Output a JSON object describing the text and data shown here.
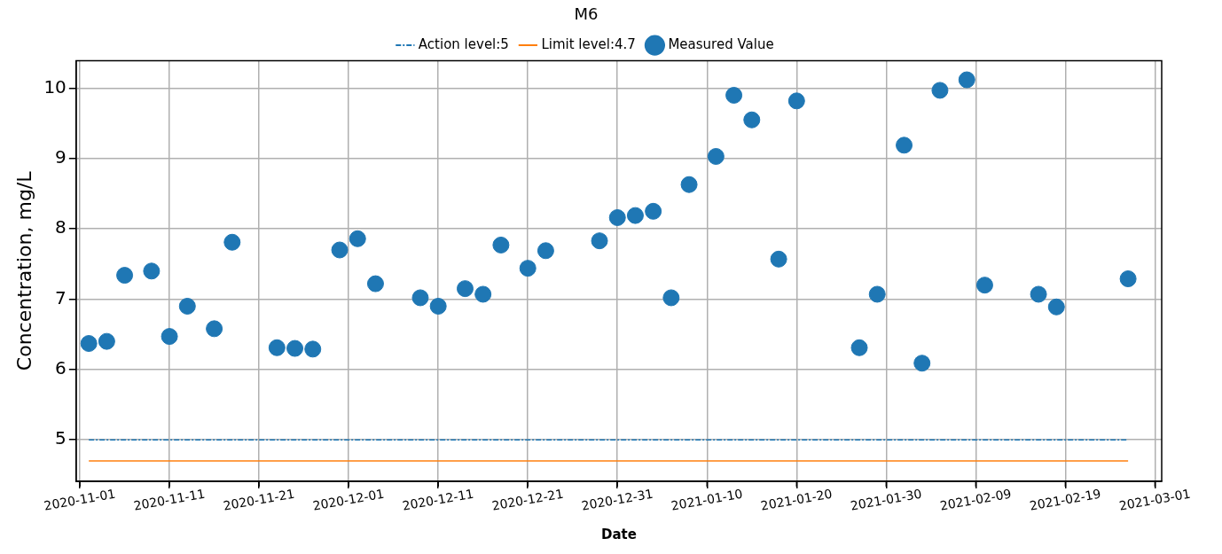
{
  "chart_data": {
    "type": "scatter",
    "legend_title": "M6",
    "xlabel": "Date",
    "ylabel": "Concentration, mg/L",
    "xlim": [
      "2020-10-31T14:00",
      "2021-03-01T18:00"
    ],
    "xticks": [
      "2020-11-01",
      "2020-11-11",
      "2020-11-21",
      "2020-12-01",
      "2020-12-11",
      "2020-12-21",
      "2020-12-31",
      "2021-01-10",
      "2021-01-20",
      "2021-01-30",
      "2021-02-09",
      "2021-02-19",
      "2021-03-01"
    ],
    "ylim": [
      4.41,
      10.39
    ],
    "yticks": [
      5,
      6,
      7,
      8,
      9,
      10
    ],
    "grid": true,
    "legend": "top",
    "series": [
      {
        "name": "Action level:5",
        "type": "line",
        "color": "#1f77b4",
        "line_style": "dashed",
        "marker": "none",
        "x": [
          "2020-11-02",
          "2021-02-26"
        ],
        "values": [
          5,
          5
        ]
      },
      {
        "name": "Limit level:4.7",
        "type": "line",
        "color": "#ff7f0e",
        "line_style": "solid",
        "marker": "none",
        "x": [
          "2020-11-02",
          "2021-02-26"
        ],
        "values": [
          4.7,
          4.7
        ]
      },
      {
        "name": "Measured Value",
        "color": "#1f77b4",
        "marker": "circle",
        "x": [
          "2020-11-02",
          "2020-11-04",
          "2020-11-06",
          "2020-11-09",
          "2020-11-11",
          "2020-11-13",
          "2020-11-16",
          "2020-11-18",
          "2020-11-23",
          "2020-11-25",
          "2020-11-27",
          "2020-11-30",
          "2020-12-02",
          "2020-12-04",
          "2020-12-09",
          "2020-12-11",
          "2020-12-14",
          "2020-12-16",
          "2020-12-18",
          "2020-12-21",
          "2020-12-23",
          "2020-12-29",
          "2020-12-31",
          "2021-01-02",
          "2021-01-04",
          "2021-01-06",
          "2021-01-08",
          "2021-01-11",
          "2021-01-13",
          "2021-01-15",
          "2021-01-18",
          "2021-01-20",
          "2021-01-27",
          "2021-01-29",
          "2021-02-01",
          "2021-02-03",
          "2021-02-05",
          "2021-02-08",
          "2021-02-10",
          "2021-02-16",
          "2021-02-18",
          "2021-02-26"
        ],
        "values": [
          6.37,
          6.4,
          7.34,
          7.4,
          6.47,
          6.9,
          6.58,
          7.81,
          6.31,
          6.3,
          6.29,
          7.7,
          7.86,
          7.22,
          7.02,
          6.9,
          7.15,
          7.07,
          7.77,
          7.44,
          7.69,
          7.83,
          8.16,
          8.19,
          8.25,
          7.02,
          8.63,
          9.03,
          9.9,
          9.55,
          7.57,
          9.82,
          6.31,
          7.07,
          9.19,
          6.09,
          9.97,
          10.12,
          7.2,
          7.07,
          6.89,
          7.29
        ]
      }
    ]
  }
}
